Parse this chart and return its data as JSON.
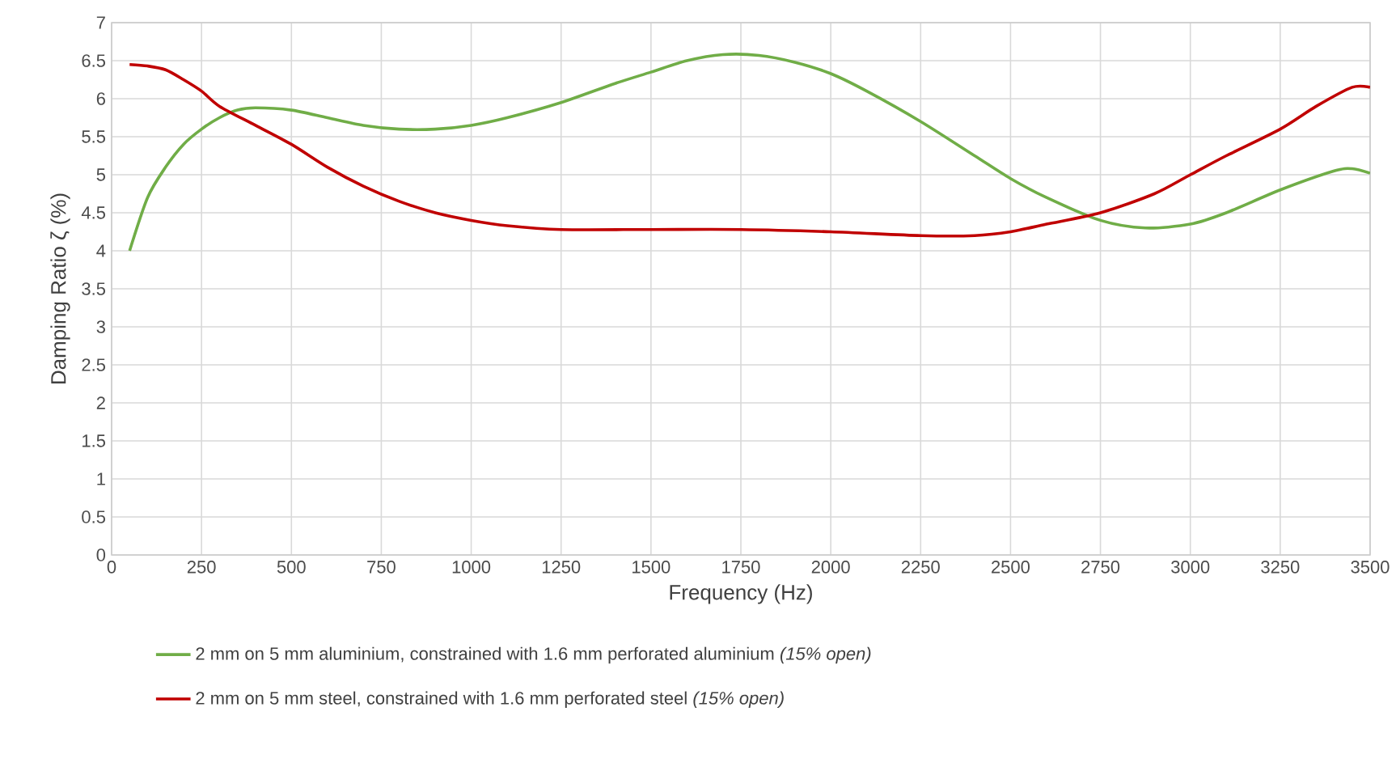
{
  "chart_data": {
    "type": "line",
    "xlabel": "Frequency (Hz)",
    "ylabel": "Damping Ratio ζ (%)",
    "xlim": [
      0,
      3500
    ],
    "xticks": [
      0,
      250,
      500,
      750,
      1000,
      1250,
      1500,
      1750,
      2000,
      2250,
      2500,
      2750,
      3000,
      3250,
      3500
    ],
    "ylim": [
      0,
      7
    ],
    "yticks": [
      0,
      0.5,
      1,
      1.5,
      2,
      2.5,
      3,
      3.5,
      4,
      4.5,
      5,
      5.5,
      6,
      6.5,
      7
    ],
    "grid": true,
    "legend": "bottom",
    "marker": "none",
    "line_style": "solid",
    "series": [
      {
        "name": "2 mm on 5 mm aluminium, constrained with 1.6 mm perforated aluminium *(15% open)*",
        "color": "#70ad47",
        "x": [
          50,
          100,
          150,
          200,
          250,
          300,
          350,
          400,
          500,
          600,
          700,
          800,
          900,
          1000,
          1100,
          1250,
          1400,
          1500,
          1600,
          1700,
          1800,
          1900,
          2000,
          2100,
          2250,
          2400,
          2500,
          2600,
          2750,
          2875,
          3000,
          3100,
          3250,
          3400,
          3450,
          3500
        ],
        "values": [
          4.0,
          4.7,
          5.1,
          5.4,
          5.6,
          5.75,
          5.85,
          5.88,
          5.85,
          5.75,
          5.65,
          5.6,
          5.6,
          5.65,
          5.75,
          5.95,
          6.2,
          6.35,
          6.5,
          6.58,
          6.57,
          6.48,
          6.33,
          6.1,
          5.7,
          5.25,
          4.95,
          4.7,
          4.4,
          4.3,
          4.35,
          4.5,
          4.8,
          5.05,
          5.08,
          5.02
        ]
      },
      {
        "name": "2 mm on 5 mm steel, constrained with 1.6 mm perforated steel *(15% open)*",
        "color": "#c00000",
        "x": [
          50,
          100,
          150,
          200,
          250,
          300,
          400,
          500,
          600,
          700,
          800,
          900,
          1000,
          1100,
          1250,
          1500,
          1750,
          2000,
          2250,
          2400,
          2500,
          2600,
          2750,
          2900,
          3000,
          3100,
          3250,
          3350,
          3450,
          3500
        ],
        "values": [
          6.45,
          6.43,
          6.38,
          6.25,
          6.1,
          5.9,
          5.65,
          5.4,
          5.1,
          4.85,
          4.65,
          4.5,
          4.4,
          4.33,
          4.28,
          4.28,
          4.28,
          4.25,
          4.2,
          4.2,
          4.25,
          4.35,
          4.5,
          4.75,
          5.0,
          5.25,
          5.6,
          5.9,
          6.15,
          6.15
        ]
      }
    ]
  }
}
